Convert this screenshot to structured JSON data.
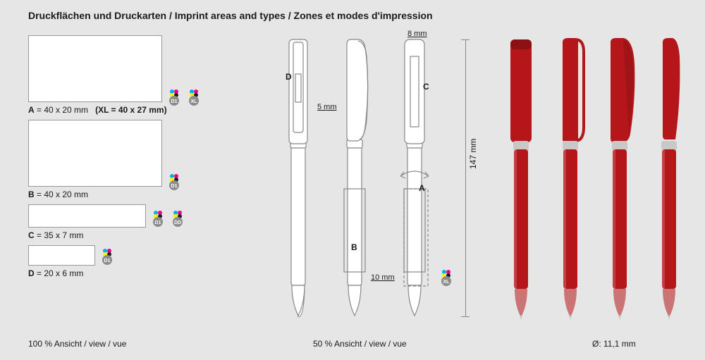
{
  "title": "Druckflächen und Druckarten / Imprint areas and types / Zones et modes d'impression",
  "boxes": {
    "A": {
      "label_prefix": "A",
      "size": "40 x 20 mm",
      "xl": "(XL = 40 x 27 mm)",
      "icons": [
        "D1",
        "XL"
      ]
    },
    "B": {
      "label_prefix": "B",
      "size": "40 x 20 mm",
      "icons": [
        "D1"
      ]
    },
    "C": {
      "label_prefix": "C",
      "size": "35 x 7 mm",
      "icons": [
        "D1",
        "DD"
      ]
    },
    "D": {
      "label_prefix": "D",
      "size": "20 x 6 mm",
      "icons": [
        "D1"
      ]
    }
  },
  "dims": {
    "top": "8 mm",
    "left": "5 mm",
    "bottom": "10 mm",
    "height": "147 mm",
    "diameter": "Ø: 11,1 mm"
  },
  "zones": {
    "a": "A",
    "b": "B",
    "c": "C",
    "d": "D",
    "xl": "XL"
  },
  "footer": {
    "left": "100 % Ansicht / view / vue",
    "center": "50 % Ansicht / view / vue"
  },
  "colors": {
    "bg": "#e6e6e6",
    "pen_red": "#b5161a",
    "pen_red_dark": "#8c1114",
    "metal": "#c8c8c8",
    "outline": "#888888",
    "icon_bg": "#8c8c8c",
    "icon_text": "#ffffff",
    "cmyk": [
      "#00aeef",
      "#ec008c",
      "#fff200",
      "#231f20"
    ]
  }
}
